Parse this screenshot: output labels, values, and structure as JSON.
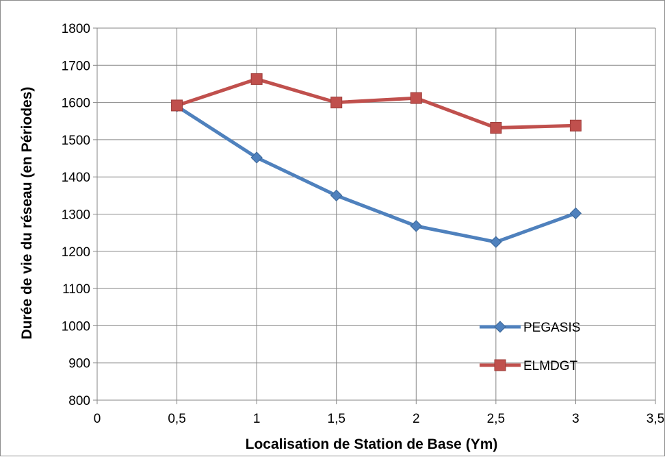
{
  "chart_data": {
    "type": "line",
    "xlabel": "Localisation de Station de Base (Ym)",
    "ylabel": "Durée de vie du réseau (en Périodes)",
    "xlim": [
      0,
      3.5
    ],
    "ylim": [
      800,
      1800
    ],
    "x_ticks": [
      "0",
      "0,5",
      "1",
      "1,5",
      "2",
      "2,5",
      "3",
      "3,5"
    ],
    "y_ticks": [
      "800",
      "900",
      "1000",
      "1100",
      "1200",
      "1300",
      "1400",
      "1500",
      "1600",
      "1700",
      "1800"
    ],
    "x_tick_values": [
      0,
      0.5,
      1,
      1.5,
      2,
      2.5,
      3,
      3.5
    ],
    "y_tick_values": [
      800,
      900,
      1000,
      1100,
      1200,
      1300,
      1400,
      1500,
      1600,
      1700,
      1800
    ],
    "grid": true,
    "legend_position": "bottom-right",
    "x": [
      0.5,
      1,
      1.5,
      2,
      2.5,
      3
    ],
    "series": [
      {
        "name": "PEGASIS",
        "values": [
          1590,
          1452,
          1350,
          1268,
          1225,
          1302
        ],
        "color": "#4f81bd",
        "marker": "diamond"
      },
      {
        "name": "ELMDGT",
        "values": [
          1592,
          1663,
          1600,
          1612,
          1532,
          1538
        ],
        "color": "#c0504d",
        "marker": "square"
      }
    ]
  }
}
